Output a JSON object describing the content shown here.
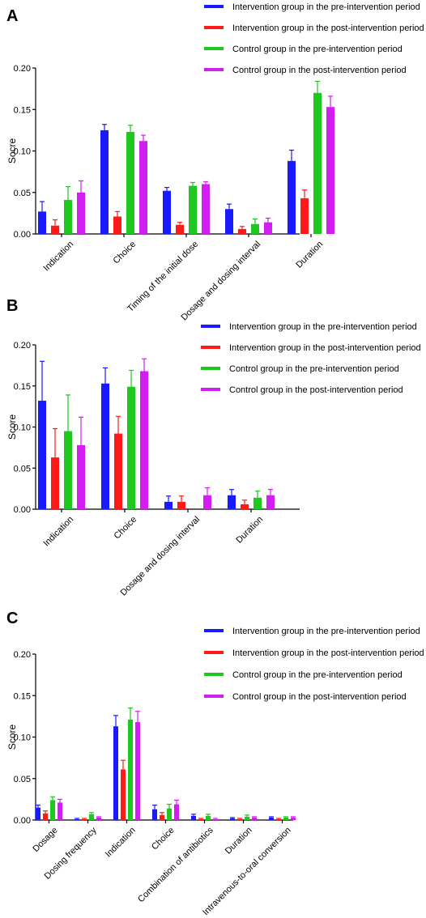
{
  "series_colors": [
    "#1a1aff",
    "#ff1a1a",
    "#1ec81e",
    "#d21ef0"
  ],
  "chart_data": [
    {
      "panel": "A",
      "type": "bar",
      "ylabel": "Socre",
      "ylim": [
        0,
        0.2
      ],
      "yticks": [
        "0.00",
        "0.05",
        "0.10",
        "0.15",
        "0.20"
      ],
      "categories": [
        "Indication",
        "Choice",
        "Timing of the initial dose",
        "Dosage and dosing interval",
        "Duration"
      ],
      "series": [
        {
          "name": "Intervention group in the pre-intervention period",
          "values": [
            0.027,
            0.125,
            0.052,
            0.03,
            0.088
          ],
          "errors": [
            0.012,
            0.007,
            0.004,
            0.006,
            0.013
          ]
        },
        {
          "name": "Intervention group in the post-intervention period",
          "values": [
            0.01,
            0.021,
            0.011,
            0.006,
            0.043
          ],
          "errors": [
            0.007,
            0.006,
            0.003,
            0.003,
            0.01
          ]
        },
        {
          "name": "Control group in the pre-intervention period",
          "values": [
            0.041,
            0.123,
            0.058,
            0.012,
            0.17
          ],
          "errors": [
            0.016,
            0.008,
            0.004,
            0.006,
            0.014
          ]
        },
        {
          "name": "Control group in the post-intervention period",
          "values": [
            0.05,
            0.112,
            0.06,
            0.014,
            0.153
          ],
          "errors": [
            0.014,
            0.007,
            0.003,
            0.005,
            0.013
          ]
        }
      ],
      "grid": false,
      "legend": "top-right"
    },
    {
      "panel": "B",
      "type": "bar",
      "ylabel": "Score",
      "ylim": [
        0,
        0.2
      ],
      "yticks": [
        "0.00",
        "0.05",
        "0.10",
        "0.15",
        "0.20"
      ],
      "categories": [
        "Indication",
        "Choice",
        "Dosage and dosing interval",
        "Duration"
      ],
      "series": [
        {
          "name": "Intervention group in the pre-intervention period",
          "values": [
            0.132,
            0.153,
            0.009,
            0.017
          ],
          "errors": [
            0.048,
            0.019,
            0.007,
            0.007
          ]
        },
        {
          "name": "Intervention group in the post-intervention period",
          "values": [
            0.063,
            0.092,
            0.009,
            0.006
          ],
          "errors": [
            0.035,
            0.021,
            0.007,
            0.005
          ]
        },
        {
          "name": "Control group in the pre-intervention period",
          "values": [
            0.095,
            0.149,
            0.0,
            0.014
          ],
          "errors": [
            0.044,
            0.02,
            0.0,
            0.008
          ]
        },
        {
          "name": "Control group in the post-intervention period",
          "values": [
            0.078,
            0.168,
            0.017,
            0.017
          ],
          "errors": [
            0.034,
            0.015,
            0.009,
            0.007
          ]
        }
      ],
      "grid": false,
      "legend": "right"
    },
    {
      "panel": "C",
      "type": "bar",
      "ylabel": "Score",
      "ylim": [
        0,
        0.2
      ],
      "yticks": [
        "0.00",
        "0.05",
        "0.10",
        "0.15",
        "0.20"
      ],
      "categories": [
        "Dosage",
        "Dosing frequency",
        "Indication",
        "Choice",
        "Combination of antibiotics",
        "Duration",
        "Intravenous-to-oral conversion"
      ],
      "series": [
        {
          "name": "Intervention group in the pre-intervention period",
          "values": [
            0.015,
            0.001,
            0.113,
            0.013,
            0.005,
            0.002,
            0.003
          ],
          "errors": [
            0.003,
            0.001,
            0.013,
            0.005,
            0.002,
            0.001,
            0.001
          ]
        },
        {
          "name": "Intervention group in the post-intervention period",
          "values": [
            0.008,
            0.001,
            0.061,
            0.006,
            0.001,
            0.001,
            0.001
          ],
          "errors": [
            0.003,
            0.001,
            0.011,
            0.003,
            0.001,
            0.001,
            0.001
          ]
        },
        {
          "name": "Control group in the pre-intervention period",
          "values": [
            0.024,
            0.007,
            0.121,
            0.014,
            0.005,
            0.004,
            0.003
          ],
          "errors": [
            0.004,
            0.002,
            0.014,
            0.005,
            0.002,
            0.002,
            0.001
          ]
        },
        {
          "name": "Control group in the post-intervention period",
          "values": [
            0.021,
            0.003,
            0.118,
            0.019,
            0.001,
            0.003,
            0.003
          ],
          "errors": [
            0.004,
            0.001,
            0.013,
            0.005,
            0.001,
            0.001,
            0.001
          ]
        }
      ],
      "grid": false,
      "legend": "right"
    }
  ]
}
